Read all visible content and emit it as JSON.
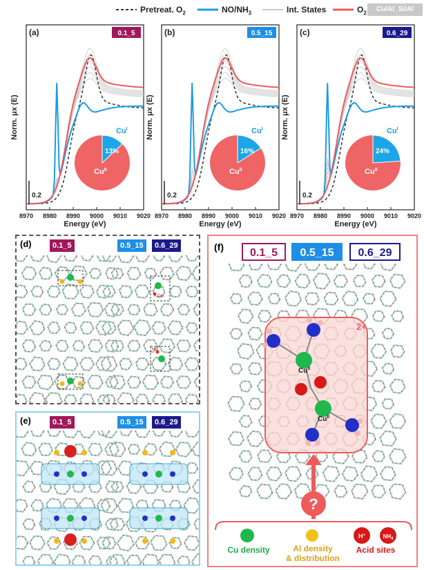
{
  "legend": {
    "items": [
      {
        "label": "Pretreat. O",
        "sub": "2",
        "color": "#333333",
        "style": "dashed"
      },
      {
        "label": "NO/NH",
        "sub": "3",
        "color": "#1a9be6",
        "style": "solid"
      },
      {
        "label": "Int. States",
        "sub": "",
        "color": "#c8c8c8",
        "style": "solid"
      },
      {
        "label": "O",
        "sub": "2",
        "color": "#ef5a5a",
        "style": "solid"
      }
    ],
    "badge": "Cu/Al_Si/Al"
  },
  "panels_abc": [
    {
      "tag": "(a)",
      "sample": "0.1_5",
      "badge_color": "#a0185a",
      "cu1_pct": "13%",
      "cu1_label": "Cu",
      "cu1_sup": "I",
      "cu2_label": "Cu",
      "cu2_sup": "II",
      "cu1_frac": 0.13
    },
    {
      "tag": "(b)",
      "sample": "0.5_15",
      "badge_color": "#1f8ee6",
      "cu1_pct": "16%",
      "cu1_label": "Cu",
      "cu1_sup": "I",
      "cu2_label": "Cu",
      "cu2_sup": "II",
      "cu1_frac": 0.16
    },
    {
      "tag": "(c)",
      "sample": "0.6_29",
      "badge_color": "#1a1a8c",
      "cu1_pct": "24%",
      "cu1_label": "Cu",
      "cu1_sup": "I",
      "cu2_label": "Cu",
      "cu2_sup": "II",
      "cu1_frac": 0.24
    }
  ],
  "axes": {
    "ylabel": "Norm. μx (E)",
    "xlabel": "Energy (eV)",
    "xticks": [
      "8970",
      "8980",
      "8990",
      "9000",
      "9010",
      "9020"
    ],
    "scale_bar": "0.2"
  },
  "panel_d": {
    "tag": "(d)",
    "badges": [
      "0.1_5",
      "0.5_15",
      "0.6_29"
    ],
    "site_labels": [
      "Cu",
      "Cu",
      "Cu",
      "Cu"
    ],
    "oh_labels": [
      "OH",
      "HO"
    ]
  },
  "panel_e": {
    "tag": "(e)",
    "badges": [
      "0.1_5",
      "0.5_15",
      "0.6_29"
    ],
    "nh4": "NH4+",
    "cu": "Cu"
  },
  "panel_f": {
    "tag": "(f)",
    "samples": [
      {
        "label": "0.1_5",
        "color": "#a0185a"
      },
      {
        "label": "0.5_15",
        "color": "#1f8ee6"
      },
      {
        "label": "0.6_29",
        "color": "#1a1a8c"
      }
    ],
    "charge": "2+",
    "cu_label": "Cu",
    "cu_sup": "II",
    "question": "?",
    "footer": {
      "cu_density": "Cu density",
      "al_line1": "Al density",
      "al_line2": "& distribution",
      "acid": "Acid sites",
      "h_plus": "H",
      "nh4": "NH"
    }
  }
}
